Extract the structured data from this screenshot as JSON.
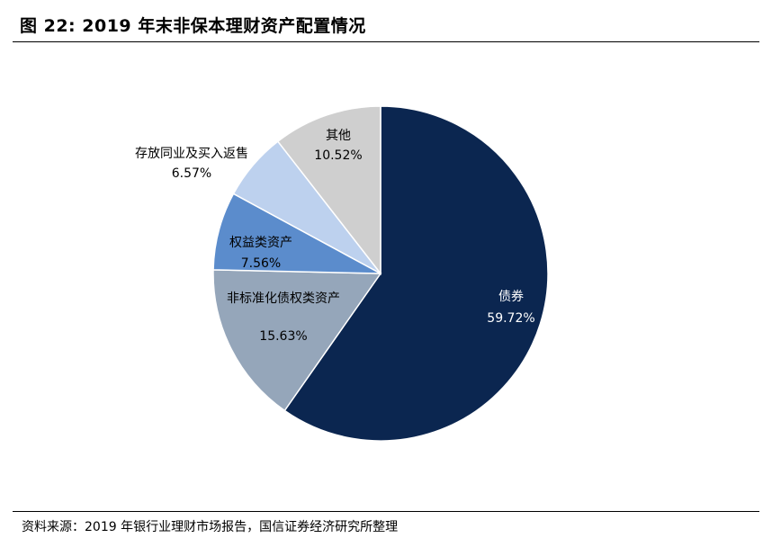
{
  "figure": {
    "title": "图 22:  2019 年末非保本理财资产配置情况",
    "source": "资料来源：2019 年银行业理财市场报告，国信证券经济研究所整理"
  },
  "chart_data": {
    "type": "pie",
    "title": "",
    "start": "12 o'clock",
    "direction": "clockwise",
    "legend": "none",
    "slices": [
      {
        "name": "债券",
        "value": 59.72,
        "label": "59.72%",
        "color": "#0b2650",
        "text_color": "#ffffff"
      },
      {
        "name": "非标准化债权类资产",
        "value": 15.63,
        "label": "15.63%",
        "color": "#95a6ba",
        "text_color": "#000000"
      },
      {
        "name": "权益类资产",
        "value": 7.56,
        "label": "7.56%",
        "color": "#5b8ccc",
        "text_color": "#000000"
      },
      {
        "name": "存放同业及买入返售",
        "value": 6.57,
        "label": "6.57%",
        "color": "#bdd1ee",
        "text_color": "#000000"
      },
      {
        "name": "其他",
        "value": 10.52,
        "label": "10.52%",
        "color": "#cfcfcf",
        "text_color": "#000000"
      }
    ]
  }
}
